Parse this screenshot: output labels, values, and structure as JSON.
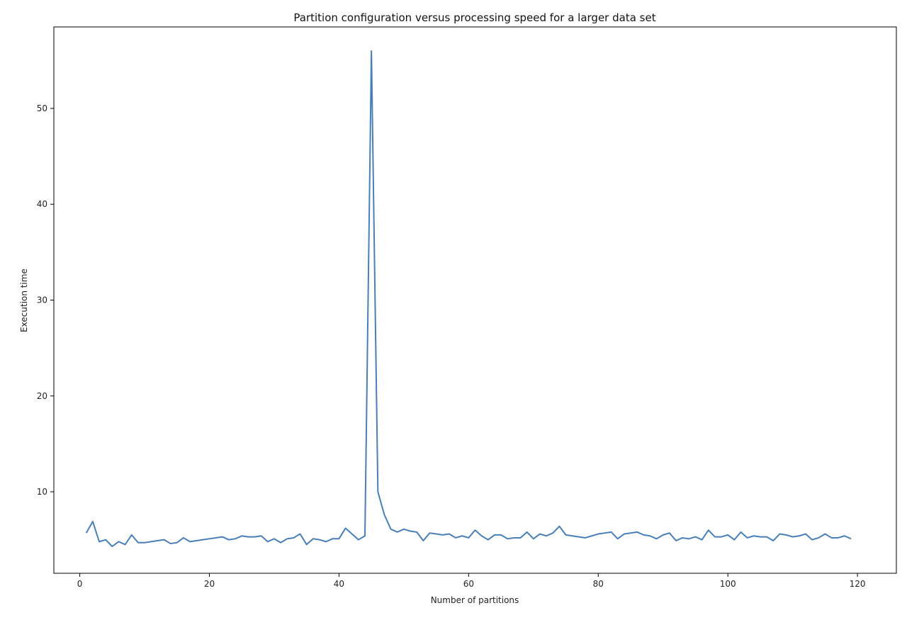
{
  "chart_data": {
    "type": "line",
    "title": "Partition configuration versus processing speed for a larger data set",
    "xlabel": "Number of partitions",
    "ylabel": "Execution time",
    "xlim": [
      -4,
      126
    ],
    "ylim": [
      1.5,
      58.5
    ],
    "xticks": [
      0,
      20,
      40,
      60,
      80,
      100,
      120
    ],
    "yticks": [
      10,
      20,
      30,
      40,
      50
    ],
    "grid": false,
    "line_color": "#4a7fb5",
    "series": [
      {
        "x": [
          1,
          2,
          3,
          4,
          5,
          6,
          7,
          8,
          9,
          10,
          11,
          12,
          13,
          14,
          15,
          16,
          17,
          18,
          19,
          20,
          21,
          22,
          23,
          24,
          25,
          26,
          27,
          28,
          29,
          30,
          31,
          32,
          33,
          34,
          35,
          36,
          37,
          38,
          39,
          40,
          41,
          42,
          43,
          44,
          45,
          46,
          47,
          48,
          49,
          50,
          51,
          52,
          53,
          54,
          55,
          56,
          57,
          58,
          59,
          60,
          61,
          62,
          63,
          64,
          65,
          66,
          67,
          68,
          69,
          70,
          71,
          72,
          73,
          74,
          75,
          76,
          77,
          78,
          79,
          80,
          81,
          82,
          83,
          84,
          85,
          86,
          87,
          88,
          89,
          90,
          91,
          92,
          93,
          94,
          95,
          96,
          97,
          98,
          99,
          100,
          101,
          102,
          103,
          104,
          105,
          106,
          107,
          108,
          109,
          110,
          111,
          112,
          113,
          114,
          115,
          116,
          117,
          118,
          119
        ],
        "values": [
          5.7,
          6.9,
          4.8,
          5.0,
          4.3,
          4.8,
          4.5,
          5.5,
          4.7,
          4.7,
          4.8,
          4.9,
          5.0,
          4.6,
          4.7,
          5.2,
          4.8,
          4.9,
          5.0,
          5.1,
          5.2,
          5.3,
          5.0,
          5.1,
          5.4,
          5.3,
          5.3,
          5.4,
          4.8,
          5.1,
          4.7,
          5.1,
          5.2,
          5.6,
          4.5,
          5.1,
          5.0,
          4.8,
          5.1,
          5.1,
          6.2,
          5.6,
          5.0,
          5.4,
          56.0,
          10.0,
          7.6,
          6.1,
          5.8,
          6.1,
          5.9,
          5.8,
          4.9,
          5.7,
          5.6,
          5.5,
          5.6,
          5.2,
          5.4,
          5.2,
          6.0,
          5.4,
          5.0,
          5.5,
          5.5,
          5.1,
          5.2,
          5.2,
          5.8,
          5.1,
          5.6,
          5.4,
          5.7,
          6.4,
          5.5,
          5.4,
          5.3,
          5.2,
          5.4,
          5.6,
          5.7,
          5.8,
          5.1,
          5.6,
          5.7,
          5.8,
          5.5,
          5.4,
          5.1,
          5.5,
          5.7,
          4.9,
          5.2,
          5.1,
          5.3,
          5.0,
          6.0,
          5.3,
          5.3,
          5.5,
          5.0,
          5.8,
          5.2,
          5.4,
          5.3,
          5.3,
          4.9,
          5.6,
          5.5,
          5.3,
          5.4,
          5.6,
          5.0,
          5.2,
          5.6,
          5.2,
          5.2,
          5.4,
          5.1
        ]
      }
    ]
  }
}
